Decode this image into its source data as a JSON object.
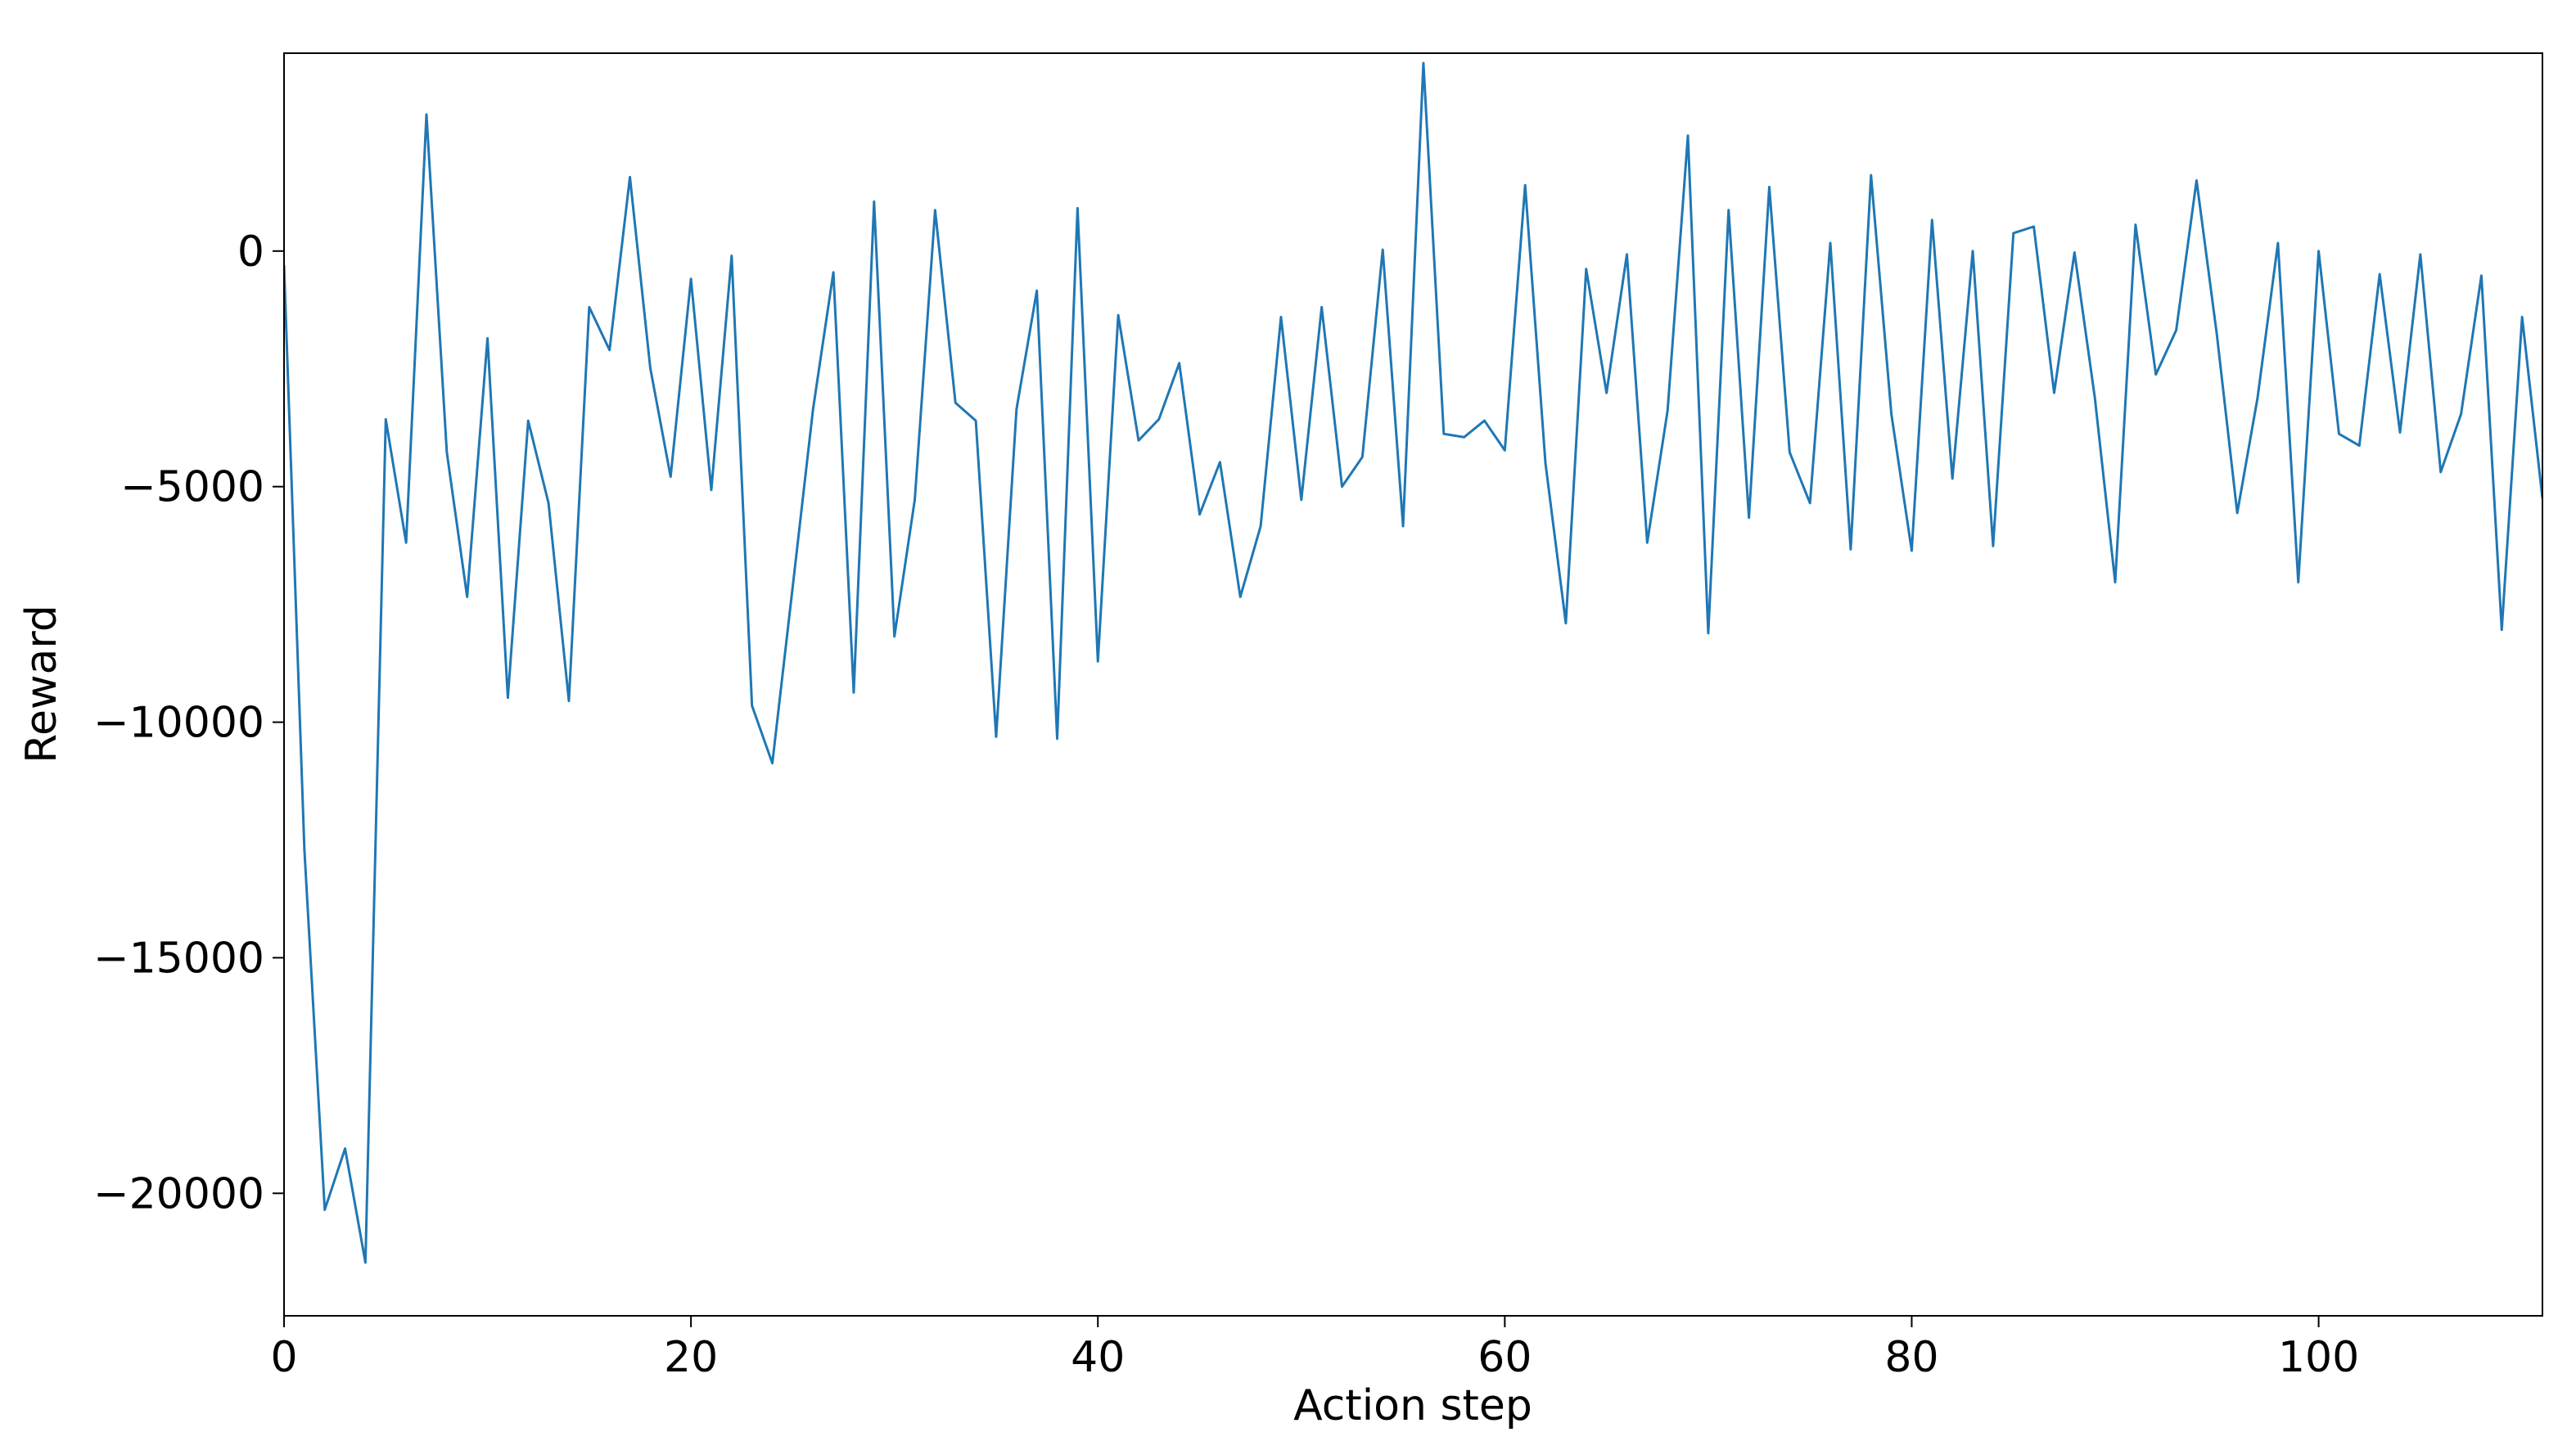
{
  "chart_data": {
    "type": "line",
    "x_label": "Action step",
    "y_label": "Reward",
    "x": [
      0,
      1,
      2,
      3,
      4,
      5,
      6,
      7,
      8,
      9,
      10,
      11,
      12,
      13,
      14,
      15,
      16,
      17,
      18,
      19,
      20,
      21,
      22,
      23,
      24,
      25,
      26,
      27,
      28,
      29,
      30,
      31,
      32,
      33,
      34,
      35,
      36,
      37,
      38,
      39,
      40,
      41,
      42,
      43,
      44,
      45,
      46,
      47,
      48,
      49,
      50,
      51,
      52,
      53,
      54,
      55,
      56,
      57,
      58,
      59,
      60,
      61,
      62,
      63,
      64,
      65,
      66,
      67,
      68,
      69,
      70,
      71,
      72,
      73,
      74,
      75,
      76,
      77,
      78,
      79,
      80,
      81,
      82,
      83,
      84,
      85,
      86,
      87,
      88,
      89,
      90,
      91,
      92,
      93,
      94,
      95,
      96,
      97,
      98,
      99,
      100,
      101,
      102,
      103,
      104,
      105,
      106,
      107,
      108,
      109,
      110,
      111
    ],
    "series": [
      {
        "name": "Reward",
        "color": "#1f77b4",
        "values": [
          -300,
          -12700,
          -20350,
          -19050,
          -21470,
          -3570,
          -6190,
          2900,
          -4270,
          -7340,
          -1850,
          -9480,
          -3600,
          -5350,
          -9550,
          -1190,
          -2100,
          1570,
          -2480,
          -4790,
          -590,
          -5070,
          -100,
          -9650,
          -10870,
          -7130,
          -3360,
          -450,
          -9370,
          1050,
          -8180,
          -5280,
          870,
          -3220,
          -3600,
          -10310,
          -3360,
          -840,
          -10350,
          910,
          -8710,
          -1360,
          -4020,
          -3570,
          -2380,
          -5590,
          -4480,
          -7340,
          -5840,
          -1400,
          -5280,
          -1190,
          -5000,
          -4370,
          30,
          -5840,
          3990,
          -3880,
          -3950,
          -3600,
          -4230,
          1400,
          -4510,
          -7900,
          -380,
          -3010,
          -70,
          -6190,
          -3390,
          2450,
          -8110,
          870,
          -5660,
          1360,
          -4270,
          -5350,
          170,
          -6330,
          1610,
          -3460,
          -6360,
          660,
          -4830,
          0,
          -6260,
          380,
          520,
          -3010,
          -30,
          -3110,
          -7030,
          560,
          -2620,
          -1680,
          1500,
          -1780,
          -5560,
          -3110,
          170,
          -7030,
          0,
          -3880,
          -4130,
          -490,
          -3850,
          -70,
          -4690,
          -3460,
          -520,
          -8040,
          -1400,
          -5250
        ]
      }
    ],
    "xlim": [
      0,
      111
    ],
    "ylim": [
      -22600,
      4200
    ],
    "xticks": [
      0,
      20,
      40,
      60,
      80,
      100
    ],
    "yticks": [
      {
        "value": -20000,
        "label": "−20000"
      },
      {
        "value": -15000,
        "label": "−15000"
      },
      {
        "value": -10000,
        "label": "−10000"
      },
      {
        "value": -5000,
        "label": "−5000"
      },
      0
    ]
  }
}
